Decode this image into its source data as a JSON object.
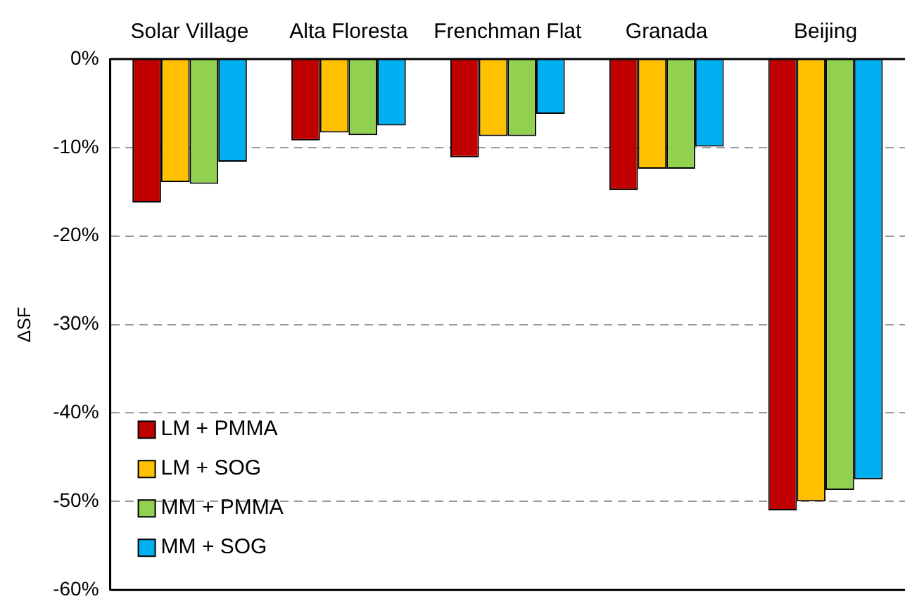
{
  "chart_data": {
    "type": "bar",
    "ylabel": "ΔSF",
    "categories": [
      "Solar Village",
      "Alta Floresta",
      "Frenchman Flat",
      "Granada",
      "Beijing"
    ],
    "series": [
      {
        "name": "LM + PMMA",
        "color": "#c00000",
        "values": [
          -16.2,
          -9.2,
          -11.1,
          -14.8,
          -51.0
        ]
      },
      {
        "name": "LM + SOG",
        "color": "#ffc000",
        "values": [
          -13.9,
          -8.3,
          -8.7,
          -12.4,
          -50.0
        ]
      },
      {
        "name": "MM + PMMA",
        "color": "#92d050",
        "values": [
          -14.1,
          -8.6,
          -8.7,
          -12.4,
          -48.7
        ]
      },
      {
        "name": "MM + SOG",
        "color": "#00b0f0",
        "values": [
          -11.6,
          -7.5,
          -6.2,
          -9.9,
          -47.5
        ]
      }
    ],
    "ylim": [
      -60,
      0
    ],
    "yticks": [
      {
        "value": 0,
        "label": "0%"
      },
      {
        "value": -10,
        "label": "-10%"
      },
      {
        "value": -20,
        "label": "-20%"
      },
      {
        "value": -30,
        "label": "-30%"
      },
      {
        "value": -40,
        "label": "-40%"
      },
      {
        "value": -50,
        "label": "-50%"
      },
      {
        "value": -60,
        "label": "-60%"
      }
    ],
    "grid": "y",
    "legend": "bottom left"
  }
}
